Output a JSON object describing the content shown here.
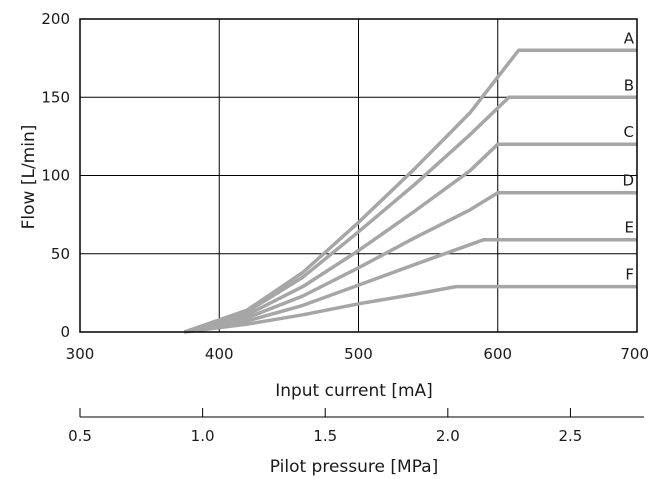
{
  "chart_data": {
    "type": "line",
    "title": "",
    "xlabel": "Input current [mA]",
    "ylabel": "Flow [L/min]",
    "secondary_xlabel": "Pilot pressure [MPa]",
    "xlim": [
      300,
      700
    ],
    "ylim": [
      0,
      200
    ],
    "secondary_xlim": [
      0.5,
      2.8
    ],
    "x_ticks": [
      "300",
      "400",
      "500",
      "600",
      "700"
    ],
    "y_ticks": [
      "0",
      "50",
      "100",
      "150",
      "200"
    ],
    "secondary_x_ticks": [
      "0.5",
      "1.0",
      "1.5",
      "2.0",
      "2.5"
    ],
    "secondary_x_tick_values": [
      0.5,
      1.0,
      1.5,
      2.0,
      2.5
    ],
    "grid": true,
    "line_color": "#a6a6a6",
    "series": [
      {
        "name": "A",
        "x": [
          375,
          420,
          460,
          500,
          540,
          580,
          615,
          700
        ],
        "y": [
          0,
          14,
          38,
          70,
          104,
          140,
          180,
          180
        ]
      },
      {
        "name": "B",
        "x": [
          375,
          420,
          460,
          500,
          540,
          580,
          608,
          700
        ],
        "y": [
          0,
          13,
          35,
          64,
          94,
          126,
          150,
          150
        ]
      },
      {
        "name": "C",
        "x": [
          375,
          420,
          460,
          500,
          540,
          580,
          600,
          700
        ],
        "y": [
          0,
          11,
          29,
          52,
          77,
          103,
          120,
          120
        ]
      },
      {
        "name": "D",
        "x": [
          375,
          420,
          460,
          500,
          540,
          580,
          600,
          700
        ],
        "y": [
          0,
          9,
          23,
          41,
          60,
          78,
          89,
          89
        ]
      },
      {
        "name": "E",
        "x": [
          375,
          420,
          460,
          500,
          540,
          590,
          700
        ],
        "y": [
          0,
          7,
          17,
          30,
          43,
          59,
          59
        ]
      },
      {
        "name": "F",
        "x": [
          375,
          420,
          460,
          500,
          540,
          570,
          700
        ],
        "y": [
          0,
          5,
          11,
          18,
          24,
          29,
          29
        ]
      }
    ]
  }
}
